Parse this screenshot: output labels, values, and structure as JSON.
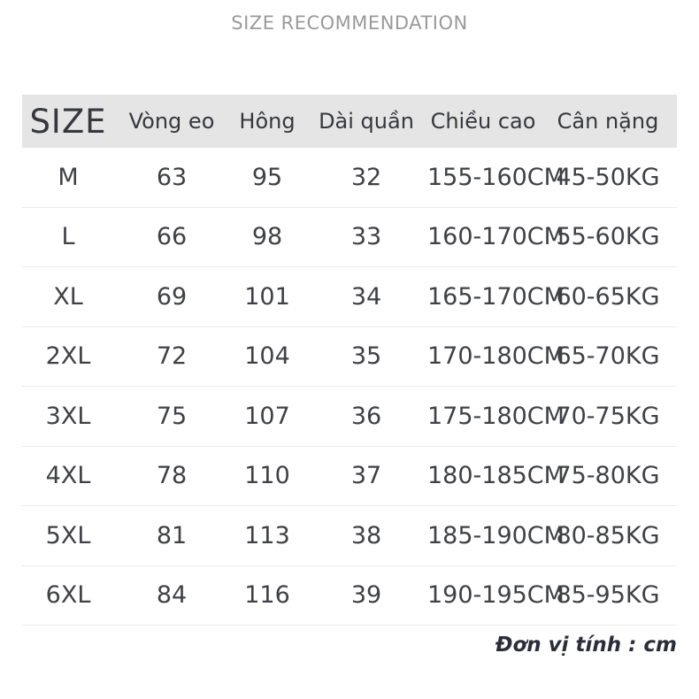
{
  "title": "SIZE RECOMMENDATION",
  "unit_note": "Đơn vị tính : cm",
  "colors": {
    "header_bg": "#e5e5e5",
    "header_text": "#36383d",
    "cell_text": "#3f4145",
    "title_text": "#9a9a9a",
    "note_text": "#2b2e3a",
    "divider": "#ececec"
  },
  "chart_data": {
    "type": "table",
    "title": "SIZE RECOMMENDATION",
    "columns": [
      "SIZE",
      "Vòng eo",
      "Hông",
      "Dài quần",
      "Chiều cao",
      "Cân nặng"
    ],
    "rows": [
      [
        "M",
        "63",
        "95",
        "32",
        "155-160CM",
        "45-50KG"
      ],
      [
        "L",
        "66",
        "98",
        "33",
        "160-170CM",
        "55-60KG"
      ],
      [
        "XL",
        "69",
        "101",
        "34",
        "165-170CM",
        "60-65KG"
      ],
      [
        "2XL",
        "72",
        "104",
        "35",
        "170-180CM",
        "65-70KG"
      ],
      [
        "3XL",
        "75",
        "107",
        "36",
        "175-180CM",
        "70-75KG"
      ],
      [
        "4XL",
        "78",
        "110",
        "37",
        "180-185CM",
        "75-80KG"
      ],
      [
        "5XL",
        "81",
        "113",
        "38",
        "185-190CM",
        "80-85KG"
      ],
      [
        "6XL",
        "84",
        "116",
        "39",
        "190-195CM",
        "85-95KG"
      ]
    ],
    "footnote": "Đơn vị tính : cm",
    "layout": {
      "header_background": "#e5e5e5",
      "grid": "horizontal-dividers-only"
    }
  }
}
